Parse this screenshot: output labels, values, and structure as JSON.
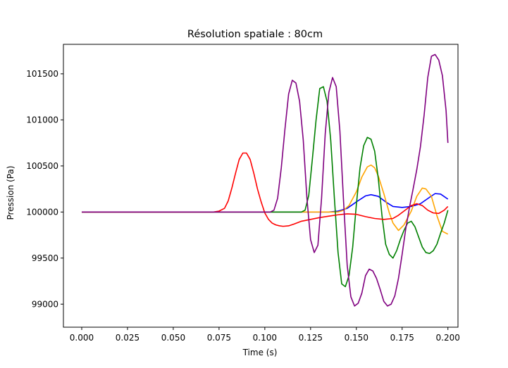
{
  "chart_data": {
    "type": "line",
    "title": "Résolution spatiale : 80cm",
    "xlabel": "Time (s)",
    "ylabel": "Pression (Pa)",
    "xlim": [
      -0.01,
      0.2055
    ],
    "ylim": [
      98750,
      101820
    ],
    "xticks": [
      0.0,
      0.025,
      0.05,
      0.075,
      0.1,
      0.125,
      0.15,
      0.175,
      0.2
    ],
    "xtick_labels": [
      "0.000",
      "0.025",
      "0.050",
      "0.075",
      "0.100",
      "0.125",
      "0.150",
      "0.175",
      "0.200"
    ],
    "yticks": [
      99000,
      99500,
      100000,
      100500,
      101000,
      101500
    ],
    "ytick_labels": [
      "99000",
      "99500",
      "100000",
      "100500",
      "101000",
      "101500"
    ],
    "grid": false,
    "legend": "none",
    "series": [
      {
        "color": "#0000ff",
        "x": [
          0.0,
          0.135,
          0.14,
          0.145,
          0.15,
          0.155,
          0.158,
          0.162,
          0.166,
          0.17,
          0.175,
          0.18,
          0.185,
          0.19,
          0.193,
          0.196,
          0.2
        ],
        "y": [
          100000,
          100000,
          100010,
          100040,
          100110,
          100175,
          100188,
          100170,
          100110,
          100060,
          100050,
          100060,
          100090,
          100160,
          100200,
          100195,
          100140
        ]
      },
      {
        "color": "#ffa500",
        "x": [
          0.0,
          0.14,
          0.143,
          0.146,
          0.15,
          0.153,
          0.156,
          0.158,
          0.16,
          0.162,
          0.165,
          0.168,
          0.17,
          0.173,
          0.176,
          0.18,
          0.183,
          0.186,
          0.188,
          0.191,
          0.194,
          0.197,
          0.2
        ],
        "y": [
          100000,
          100000,
          100020,
          100070,
          100220,
          100380,
          100490,
          100510,
          100480,
          100390,
          100200,
          99990,
          99880,
          99800,
          99860,
          100010,
          100170,
          100260,
          100250,
          100170,
          99960,
          99790,
          99760
        ]
      },
      {
        "color": "#008000",
        "x": [
          0.0,
          0.12,
          0.122,
          0.124,
          0.126,
          0.128,
          0.13,
          0.132,
          0.134,
          0.136,
          0.138,
          0.14,
          0.142,
          0.144,
          0.146,
          0.148,
          0.15,
          0.152,
          0.154,
          0.156,
          0.158,
          0.16,
          0.162,
          0.164,
          0.166,
          0.168,
          0.17,
          0.172,
          0.174,
          0.176,
          0.178,
          0.18,
          0.182,
          0.184,
          0.186,
          0.188,
          0.19,
          0.192,
          0.194,
          0.196,
          0.198,
          0.2
        ],
        "y": [
          100000,
          100000,
          100020,
          100180,
          100580,
          101000,
          101340,
          101360,
          101200,
          100780,
          100150,
          99560,
          99220,
          99190,
          99310,
          99620,
          100080,
          100480,
          100720,
          100810,
          100790,
          100660,
          100360,
          99960,
          99650,
          99540,
          99500,
          99580,
          99700,
          99800,
          99880,
          99900,
          99840,
          99730,
          99620,
          99560,
          99550,
          99580,
          99650,
          99770,
          99880,
          100020
        ]
      },
      {
        "color": "#ff0000",
        "x": [
          0.0,
          0.072,
          0.075,
          0.078,
          0.08,
          0.082,
          0.084,
          0.086,
          0.088,
          0.09,
          0.092,
          0.094,
          0.096,
          0.098,
          0.1,
          0.102,
          0.104,
          0.106,
          0.108,
          0.11,
          0.113,
          0.116,
          0.12,
          0.125,
          0.13,
          0.135,
          0.14,
          0.145,
          0.15,
          0.155,
          0.16,
          0.165,
          0.17,
          0.173,
          0.176,
          0.18,
          0.183,
          0.186,
          0.189,
          0.192,
          0.195,
          0.198,
          0.2
        ],
        "y": [
          100000,
          100000,
          100010,
          100040,
          100120,
          100260,
          100420,
          100570,
          100640,
          100640,
          100570,
          100420,
          100250,
          100110,
          99990,
          99920,
          99880,
          99860,
          99850,
          99845,
          99850,
          99870,
          99900,
          99920,
          99940,
          99955,
          99970,
          99980,
          99975,
          99950,
          99930,
          99920,
          99930,
          99965,
          100010,
          100070,
          100090,
          100070,
          100020,
          99990,
          99985,
          100020,
          100060
        ]
      },
      {
        "color": "#800080",
        "x": [
          0.0,
          0.103,
          0.105,
          0.107,
          0.109,
          0.111,
          0.113,
          0.115,
          0.117,
          0.119,
          0.121,
          0.123,
          0.125,
          0.127,
          0.129,
          0.131,
          0.133,
          0.135,
          0.137,
          0.139,
          0.141,
          0.143,
          0.145,
          0.147,
          0.149,
          0.151,
          0.153,
          0.155,
          0.157,
          0.159,
          0.161,
          0.163,
          0.165,
          0.167,
          0.169,
          0.171,
          0.173,
          0.175,
          0.177,
          0.179,
          0.181,
          0.183,
          0.185,
          0.187,
          0.189,
          0.191,
          0.193,
          0.195,
          0.197,
          0.199,
          0.2
        ],
        "y": [
          100000,
          100000,
          100020,
          100150,
          100480,
          100900,
          101280,
          101430,
          101400,
          101200,
          100780,
          100150,
          99700,
          99560,
          99640,
          100150,
          100850,
          101300,
          101460,
          101360,
          100880,
          100120,
          99420,
          99080,
          98980,
          99010,
          99120,
          99310,
          99380,
          99360,
          99280,
          99160,
          99030,
          98980,
          99000,
          99090,
          99280,
          99540,
          99820,
          100050,
          100250,
          100460,
          100710,
          101050,
          101460,
          101690,
          101710,
          101650,
          101480,
          101100,
          100750
        ]
      }
    ]
  }
}
